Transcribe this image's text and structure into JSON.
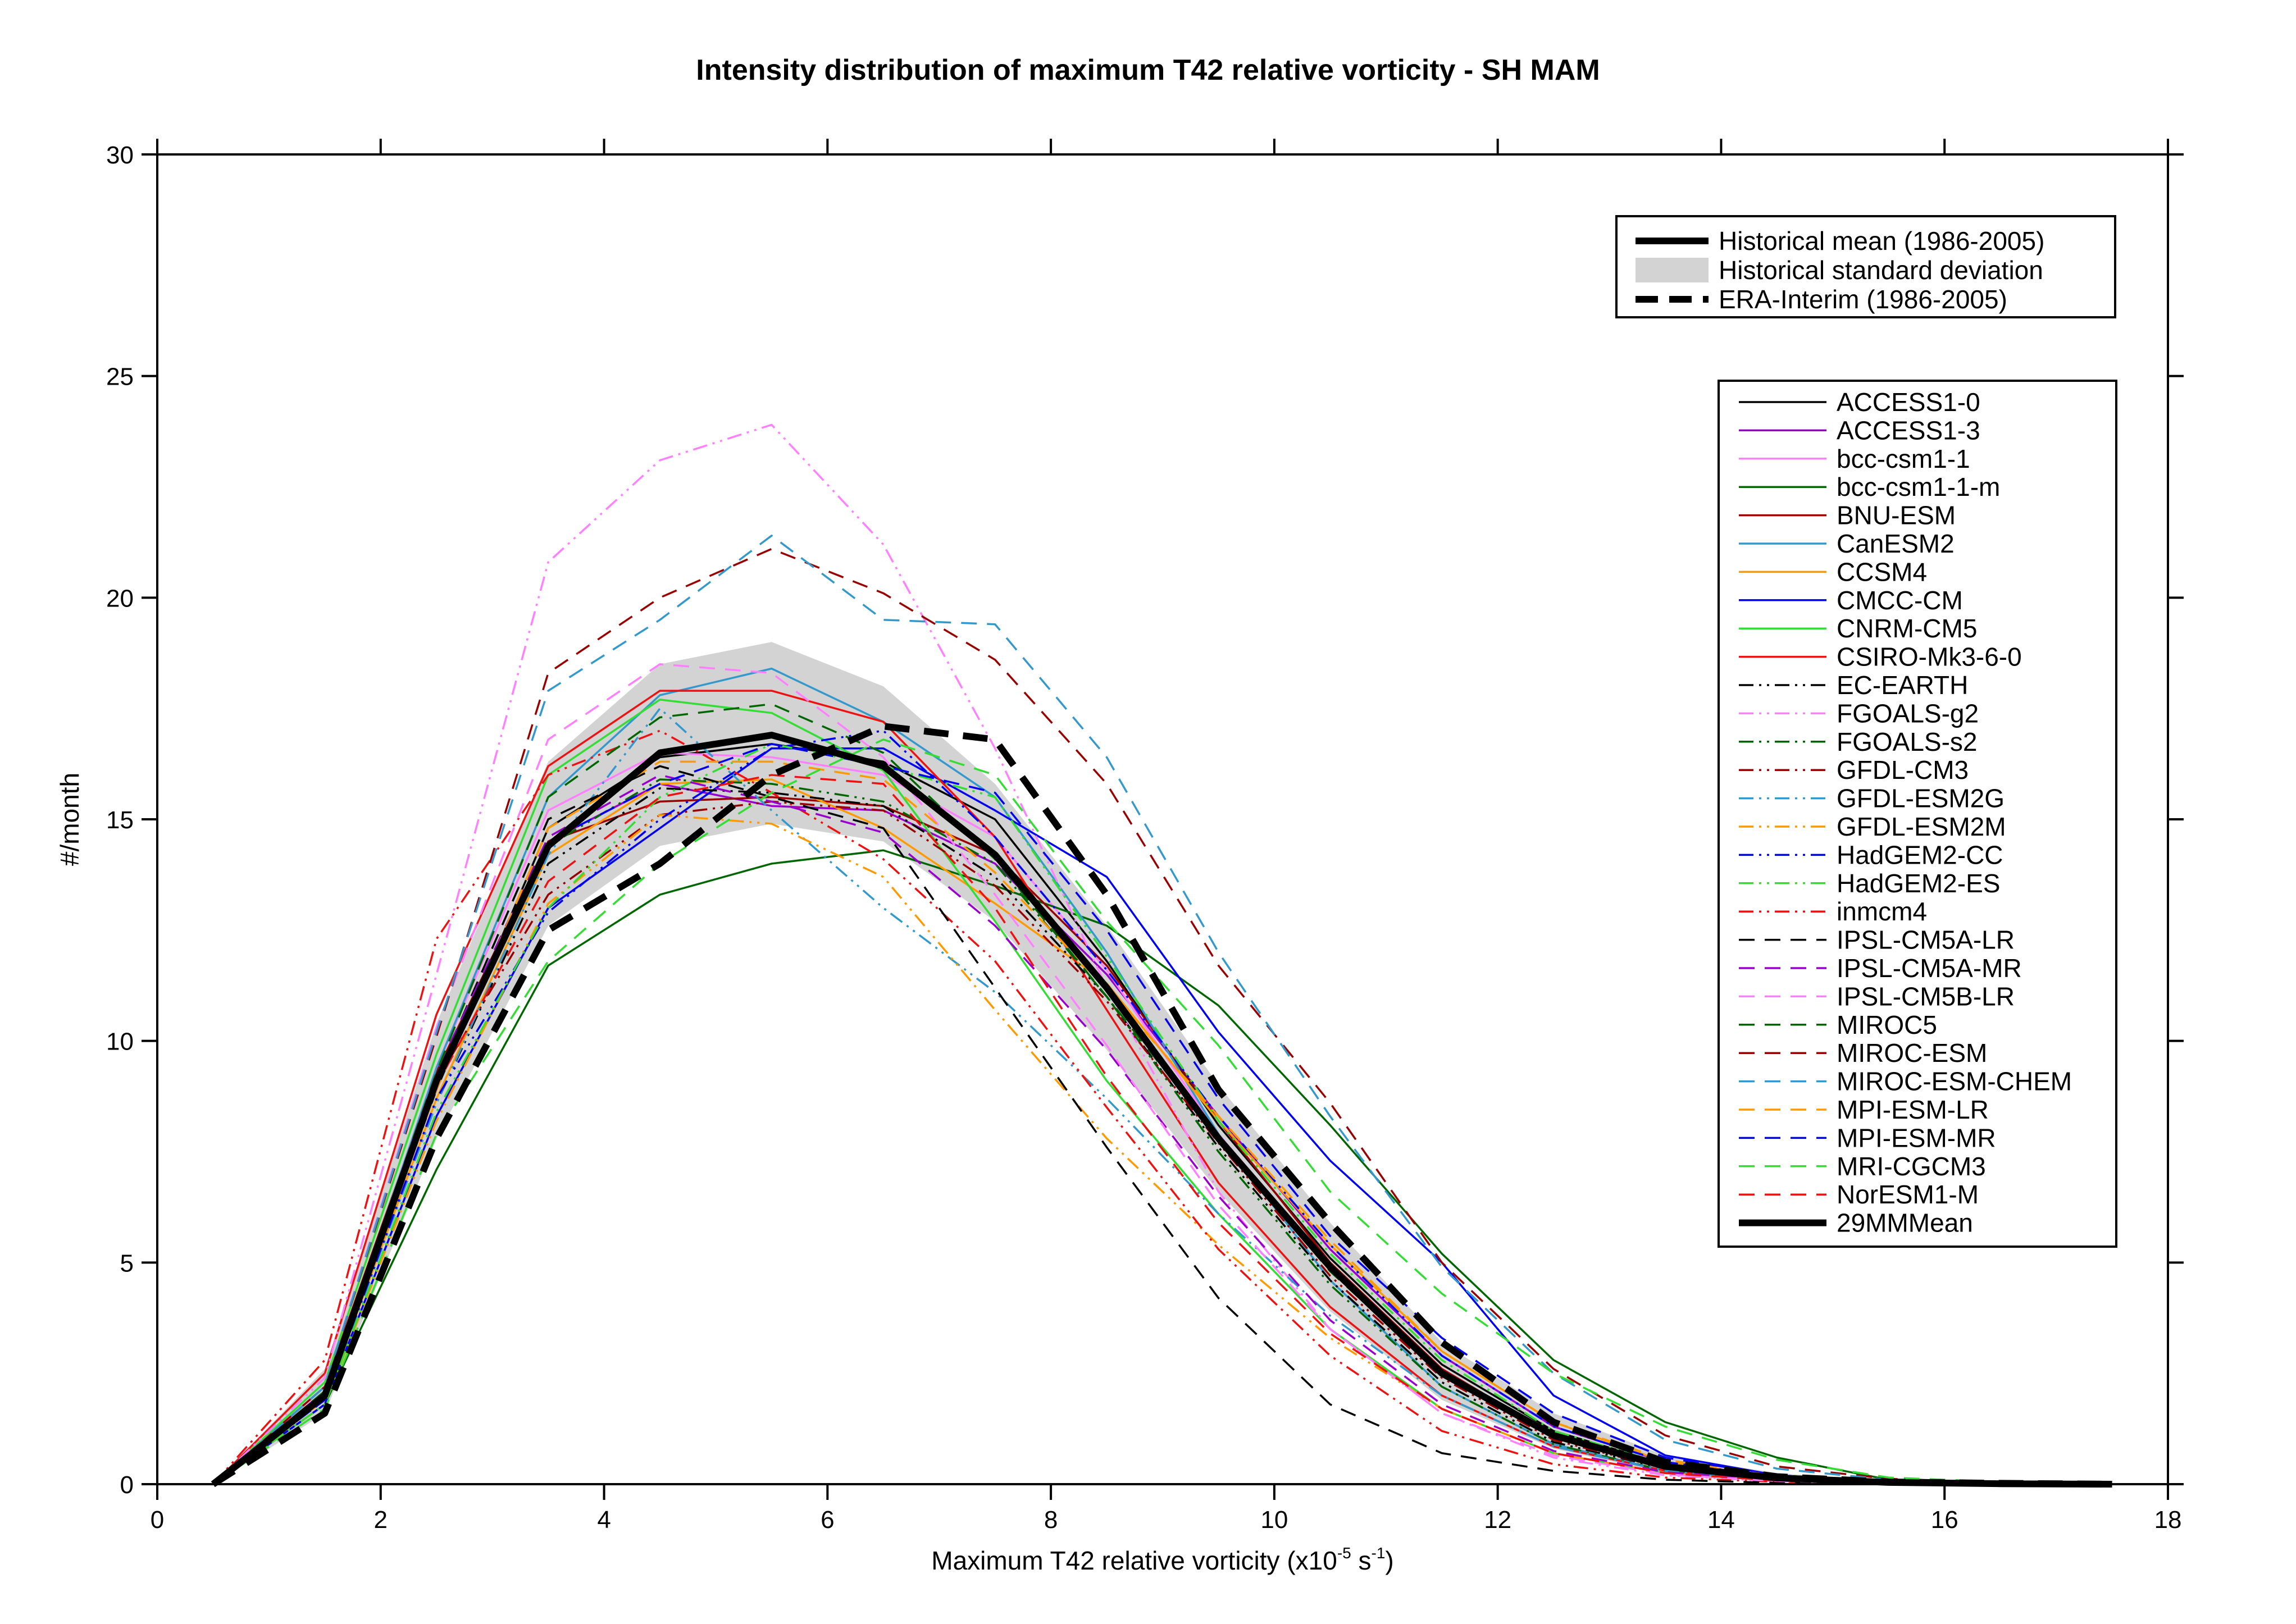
{
  "chart_data": {
    "type": "line",
    "title": "Intensity distribution of maximum T42 relative vorticity - SH MAM",
    "xlabel": {
      "base": "Maximum T42 relative vorticity (x10",
      "exp1": "-5",
      "mid": " s",
      "exp2": "-1",
      "end": ")"
    },
    "ylabel": "#/month",
    "xlim": [
      0,
      18
    ],
    "ylim": [
      0,
      30
    ],
    "xticks": [
      0,
      2,
      4,
      6,
      8,
      10,
      12,
      14,
      16,
      18
    ],
    "yticks": [
      0,
      5,
      10,
      15,
      20,
      25,
      30
    ],
    "grid": false,
    "x": [
      0.5,
      1.5,
      2.5,
      3.5,
      4.5,
      5.5,
      6.5,
      7.5,
      8.5,
      9.5,
      10.5,
      11.5,
      12.5,
      13.5,
      14.5,
      15.5,
      16.5,
      17.5
    ],
    "std_band": {
      "name": "Historical standard deviation",
      "color": "#d3d3d3",
      "lower": [
        0,
        1.6,
        7.8,
        12.6,
        14.4,
        14.9,
        14.5,
        12.7,
        9.8,
        6.6,
        3.9,
        1.9,
        0.8,
        0.25,
        0.08,
        0.02,
        0.0,
        0.0
      ],
      "upper": [
        0,
        2.6,
        10.4,
        16.3,
        18.5,
        19.0,
        18.0,
        15.8,
        12.6,
        9.0,
        5.9,
        3.2,
        1.6,
        0.65,
        0.25,
        0.08,
        0.03,
        0.01
      ]
    },
    "legend_main": [
      {
        "name": "Historical mean (1986-2005)",
        "style": "solid",
        "width": 12,
        "color": "#000000"
      },
      {
        "name": "Historical standard deviation",
        "style": "band",
        "width": 40,
        "color": "#d3d3d3"
      },
      {
        "name": "ERA-Interim (1986-2005)",
        "style": "dash",
        "width": 12,
        "color": "#000000"
      }
    ],
    "series": [
      {
        "name": "ACCESS1-0",
        "color": "#000000",
        "style": "solid",
        "values": [
          0,
          2.0,
          8.9,
          14.8,
          16.4,
          16.7,
          16.3,
          15.0,
          11.8,
          8.1,
          5.1,
          2.7,
          1.2,
          0.45,
          0.15,
          0.05,
          0.02,
          0.0
        ]
      },
      {
        "name": "ACCESS1-3",
        "color": "#9900cc",
        "style": "solid",
        "values": [
          0,
          2.1,
          9.0,
          14.5,
          15.8,
          15.3,
          15.2,
          14.0,
          11.5,
          8.3,
          5.3,
          2.9,
          1.3,
          0.5,
          0.17,
          0.05,
          0.02,
          0.0
        ]
      },
      {
        "name": "bcc-csm1-1",
        "color": "#ff80ff",
        "style": "solid",
        "values": [
          0,
          2.0,
          9.4,
          15.2,
          16.5,
          16.4,
          16.0,
          14.6,
          11.6,
          7.9,
          4.9,
          2.6,
          1.1,
          0.4,
          0.13,
          0.04,
          0.01,
          0.0
        ]
      },
      {
        "name": "bcc-csm1-1-m",
        "color": "#006600",
        "style": "solid",
        "values": [
          0,
          1.8,
          7.1,
          11.7,
          13.3,
          14.0,
          14.3,
          13.5,
          12.6,
          10.8,
          8.1,
          5.2,
          2.8,
          1.4,
          0.6,
          0.1,
          0.03,
          0.0
        ]
      },
      {
        "name": "BNU-ESM",
        "color": "#990000",
        "style": "solid",
        "values": [
          0,
          2.2,
          9.3,
          14.5,
          15.4,
          15.5,
          15.3,
          14.2,
          11.7,
          8.2,
          5.0,
          2.6,
          1.1,
          0.4,
          0.13,
          0.04,
          0.01,
          0.0
        ]
      },
      {
        "name": "CanESM2",
        "color": "#3399cc",
        "style": "solid",
        "values": [
          0,
          2.0,
          9.4,
          15.5,
          17.8,
          18.4,
          17.2,
          15.5,
          12.0,
          7.9,
          4.6,
          2.2,
          0.9,
          0.3,
          0.1,
          0.03,
          0.01,
          0.0
        ]
      },
      {
        "name": "CCSM4",
        "color": "#ff9900",
        "style": "solid",
        "values": [
          0,
          1.9,
          8.7,
          14.2,
          15.8,
          15.9,
          14.8,
          13.1,
          11.3,
          8.2,
          5.4,
          3.0,
          1.4,
          0.5,
          0.17,
          0.05,
          0.02,
          0.0
        ]
      },
      {
        "name": "CMCC-CM",
        "color": "#0000ee",
        "style": "solid",
        "values": [
          0,
          1.8,
          8.3,
          13.0,
          14.8,
          16.6,
          16.6,
          15.2,
          13.7,
          10.2,
          7.3,
          5.0,
          2.0,
          0.65,
          0.2,
          0.06,
          0.02,
          0.0
        ]
      },
      {
        "name": "CNRM-CM5",
        "color": "#33dd33",
        "style": "solid",
        "values": [
          0,
          2.3,
          9.7,
          16.0,
          17.7,
          17.4,
          16.1,
          12.7,
          9.1,
          6.1,
          3.5,
          1.7,
          0.7,
          0.25,
          0.08,
          0.02,
          0.0,
          0.0
        ]
      },
      {
        "name": "CSIRO-Mk3-6-0",
        "color": "#ee1111",
        "style": "solid",
        "values": [
          0,
          2.5,
          10.6,
          16.2,
          17.9,
          17.9,
          17.2,
          14.6,
          10.7,
          6.8,
          4.0,
          2.0,
          0.85,
          0.3,
          0.1,
          0.03,
          0.01,
          0.0
        ]
      },
      {
        "name": "EC-EARTH",
        "color": "#000000",
        "style": "dashdotdot",
        "values": [
          0,
          1.9,
          8.6,
          14.0,
          15.7,
          15.6,
          15.3,
          13.7,
          11.0,
          7.6,
          4.6,
          2.3,
          0.95,
          0.35,
          0.11,
          0.03,
          0.01,
          0.0
        ]
      },
      {
        "name": "FGOALS-g2",
        "color": "#ff80ff",
        "style": "dashdotdot",
        "values": [
          0,
          2.4,
          11.5,
          20.8,
          23.1,
          23.9,
          21.2,
          16.6,
          11.2,
          6.6,
          3.5,
          1.6,
          0.6,
          0.2,
          0.06,
          0.02,
          0.0,
          0.0
        ]
      },
      {
        "name": "FGOALS-s2",
        "color": "#006600",
        "style": "dashdotdot",
        "values": [
          0,
          2.0,
          9.2,
          14.4,
          15.9,
          15.8,
          15.4,
          14.0,
          11.0,
          7.5,
          4.5,
          2.2,
          0.9,
          0.3,
          0.1,
          0.03,
          0.01,
          0.0
        ]
      },
      {
        "name": "GFDL-CM3",
        "color": "#990000",
        "style": "dashdotdot",
        "values": [
          0,
          2.1,
          9.1,
          13.3,
          15.1,
          15.4,
          15.2,
          13.5,
          10.9,
          7.7,
          4.7,
          2.4,
          1.0,
          0.35,
          0.12,
          0.04,
          0.01,
          0.0
        ]
      },
      {
        "name": "GFDL-ESM2G",
        "color": "#3399cc",
        "style": "dashdotdot",
        "values": [
          0,
          1.9,
          8.6,
          14.2,
          17.5,
          15.2,
          13.0,
          11.1,
          8.7,
          6.1,
          3.8,
          2.0,
          0.85,
          0.3,
          0.1,
          0.03,
          0.01,
          0.0
        ]
      },
      {
        "name": "GFDL-ESM2M",
        "color": "#ff9900",
        "style": "dashdotdot",
        "values": [
          0,
          1.8,
          8.2,
          13.1,
          15.1,
          14.9,
          13.7,
          10.7,
          7.8,
          5.4,
          3.3,
          1.7,
          0.7,
          0.25,
          0.08,
          0.02,
          0.0,
          0.0
        ]
      },
      {
        "name": "HadGEM2-CC",
        "color": "#0000ee",
        "style": "dashdotdot",
        "values": [
          0,
          1.9,
          8.7,
          12.9,
          15.0,
          16.6,
          17.0,
          14.6,
          11.6,
          8.3,
          5.4,
          2.9,
          1.3,
          0.5,
          0.16,
          0.05,
          0.02,
          0.0
        ]
      },
      {
        "name": "HadGEM2-ES",
        "color": "#33dd33",
        "style": "dashdotdot",
        "values": [
          0,
          1.8,
          8.4,
          13.0,
          15.5,
          16.7,
          16.2,
          15.5,
          11.9,
          8.2,
          5.2,
          2.8,
          1.2,
          0.45,
          0.15,
          0.05,
          0.02,
          0.0
        ]
      },
      {
        "name": "inmcm4",
        "color": "#ee1111",
        "style": "dashdotdot",
        "values": [
          0,
          2.8,
          12.3,
          16.0,
          17.0,
          15.6,
          14.1,
          11.8,
          8.5,
          5.3,
          2.9,
          1.2,
          0.45,
          0.15,
          0.05,
          0.01,
          0.0,
          0.0
        ]
      },
      {
        "name": "IPSL-CM5A-LR",
        "color": "#000000",
        "style": "dash",
        "values": [
          0,
          2.0,
          9.2,
          15.0,
          16.2,
          15.5,
          14.8,
          11.2,
          7.6,
          4.2,
          1.8,
          0.7,
          0.3,
          0.1,
          0.03,
          0.01,
          0.0,
          0.0
        ]
      },
      {
        "name": "IPSL-CM5A-MR",
        "color": "#9900cc",
        "style": "dash",
        "values": [
          0,
          2.0,
          9.3,
          14.6,
          16.0,
          15.4,
          14.7,
          12.6,
          9.8,
          6.5,
          3.7,
          1.8,
          0.75,
          0.27,
          0.09,
          0.03,
          0.01,
          0.0
        ]
      },
      {
        "name": "IPSL-CM5B-LR",
        "color": "#ff80ff",
        "style": "dash",
        "values": [
          0,
          2.2,
          10.3,
          16.8,
          18.5,
          18.3,
          16.4,
          13.3,
          9.9,
          6.3,
          3.5,
          1.6,
          0.65,
          0.22,
          0.07,
          0.02,
          0.01,
          0.0
        ]
      },
      {
        "name": "MIROC5",
        "color": "#006600",
        "style": "dash",
        "values": [
          0,
          2.1,
          9.3,
          15.5,
          17.3,
          17.6,
          16.5,
          14.1,
          11.0,
          7.8,
          4.8,
          2.5,
          1.1,
          0.4,
          0.13,
          0.04,
          0.01,
          0.0
        ]
      },
      {
        "name": "MIROC-ESM",
        "color": "#990000",
        "style": "dash",
        "values": [
          0,
          2.2,
          10.1,
          18.3,
          20.0,
          21.1,
          20.1,
          18.6,
          15.8,
          11.7,
          8.6,
          5.0,
          2.6,
          1.1,
          0.4,
          0.12,
          0.04,
          0.01
        ]
      },
      {
        "name": "MIROC-ESM-CHEM",
        "color": "#3399cc",
        "style": "dash",
        "values": [
          0,
          2.2,
          10.2,
          17.9,
          19.5,
          21.4,
          19.5,
          19.4,
          16.4,
          12.0,
          8.3,
          4.9,
          2.5,
          1.0,
          0.35,
          0.1,
          0.03,
          0.01
        ]
      },
      {
        "name": "MPI-ESM-LR",
        "color": "#ff9900",
        "style": "dash",
        "values": [
          0,
          1.9,
          8.9,
          14.8,
          16.3,
          16.3,
          15.9,
          13.8,
          11.2,
          8.3,
          5.5,
          3.0,
          1.4,
          0.55,
          0.18,
          0.05,
          0.02,
          0.0
        ]
      },
      {
        "name": "MPI-ESM-MR",
        "color": "#0000ee",
        "style": "dash",
        "values": [
          0,
          1.9,
          9.1,
          14.5,
          15.8,
          16.7,
          16.2,
          15.6,
          12.5,
          8.7,
          5.6,
          3.3,
          1.6,
          0.6,
          0.2,
          0.06,
          0.02,
          0.0
        ]
      },
      {
        "name": "MRI-CGCM3",
        "color": "#33dd33",
        "style": "dash",
        "values": [
          0,
          1.7,
          7.9,
          11.8,
          14.0,
          15.6,
          16.8,
          16.0,
          12.7,
          9.9,
          6.6,
          4.3,
          2.5,
          1.3,
          0.55,
          0.15,
          0.05,
          0.01
        ]
      },
      {
        "name": "NorESM1-M",
        "color": "#ee1111",
        "style": "dash",
        "values": [
          0,
          2.0,
          9.0,
          13.6,
          15.5,
          16.0,
          15.8,
          13.0,
          9.2,
          5.9,
          3.4,
          1.7,
          0.7,
          0.25,
          0.08,
          0.02,
          0.01,
          0.0
        ]
      },
      {
        "name": "29MMMean",
        "color": "#000000",
        "style": "solid",
        "width": 12,
        "values": [
          0,
          2.0,
          9.1,
          14.4,
          16.5,
          16.9,
          16.2,
          14.2,
          11.2,
          7.8,
          4.9,
          2.5,
          1.1,
          0.4,
          0.14,
          0.04,
          0.01,
          0.0
        ]
      }
    ],
    "era_interim": {
      "name": "ERA-Interim (1986-2005)",
      "color": "#000000",
      "style": "dash",
      "width": 12,
      "values": [
        0,
        1.6,
        7.8,
        12.5,
        14.0,
        16.0,
        17.1,
        16.8,
        13.3,
        8.9,
        5.9,
        3.2,
        1.4,
        0.5,
        0.17,
        0.05,
        0.02,
        0.0
      ]
    }
  }
}
